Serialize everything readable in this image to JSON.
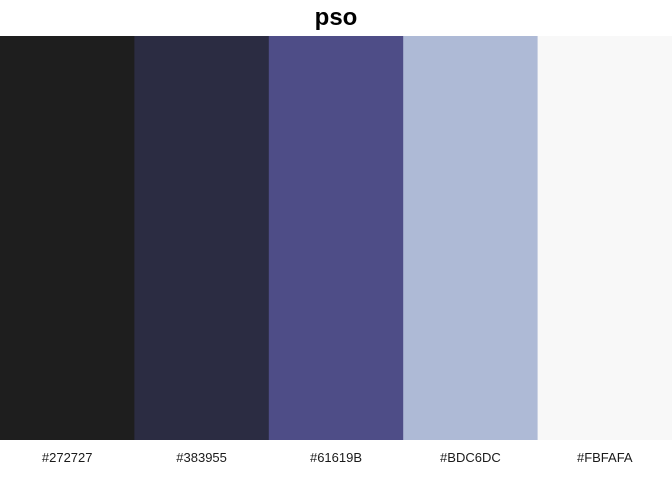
{
  "title": "pso",
  "chart_data": {
    "type": "bar",
    "title": "pso",
    "categories": [
      "#272727",
      "#383955",
      "#61619B",
      "#BDC6DC",
      "#FBFAFA"
    ],
    "values": [
      1,
      1,
      1,
      1,
      1
    ],
    "colors": [
      "#1e1e1e",
      "#2b2c42",
      "#4e4d87",
      "#aebad6",
      "#f8f8f8"
    ],
    "xlabel": "",
    "ylabel": "",
    "grid": false,
    "legend": "none"
  }
}
